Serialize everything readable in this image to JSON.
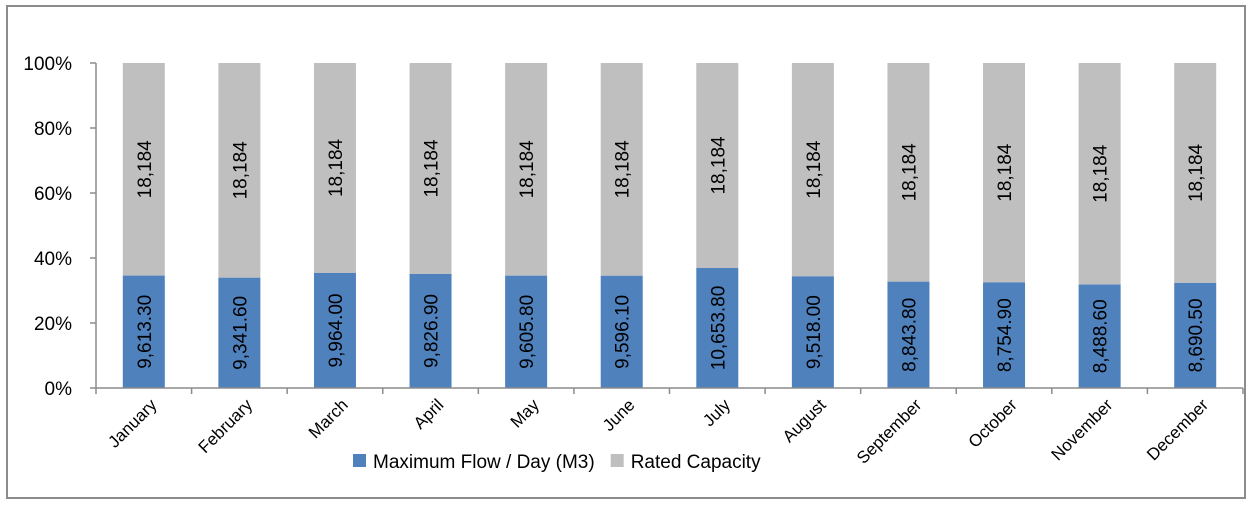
{
  "chart_data": {
    "type": "bar",
    "stacked": "percent",
    "categories": [
      "January",
      "February",
      "March",
      "April",
      "May",
      "June",
      "July",
      "August",
      "September",
      "October",
      "November",
      "December"
    ],
    "series": [
      {
        "name": "Maximum Flow / Day (M3)",
        "color": "#4f81bd",
        "values": [
          9613.3,
          9341.6,
          9964.0,
          9826.9,
          9605.8,
          9596.1,
          10653.8,
          9518.0,
          8843.8,
          8754.9,
          8488.6,
          8690.5
        ],
        "labels": [
          "9,613.30",
          "9,341.60",
          "9,964.00",
          "9,826.90",
          "9,605.80",
          "9,596.10",
          "10,653.80",
          "9,518.00",
          "8,843.80",
          "8,754.90",
          "8,488.60",
          "8,690.50"
        ]
      },
      {
        "name": "Rated Capacity",
        "color": "#bfbfbf",
        "values": [
          18184,
          18184,
          18184,
          18184,
          18184,
          18184,
          18184,
          18184,
          18184,
          18184,
          18184,
          18184
        ],
        "labels": [
          "18,184",
          "18,184",
          "18,184",
          "18,184",
          "18,184",
          "18,184",
          "18,184",
          "18,184",
          "18,184",
          "18,184",
          "18,184",
          "18,184"
        ]
      }
    ],
    "yticks": [
      "0%",
      "20%",
      "40%",
      "60%",
      "80%",
      "100%"
    ],
    "ylim": [
      0,
      100
    ],
    "grid": false,
    "legend_position": "bottom"
  }
}
